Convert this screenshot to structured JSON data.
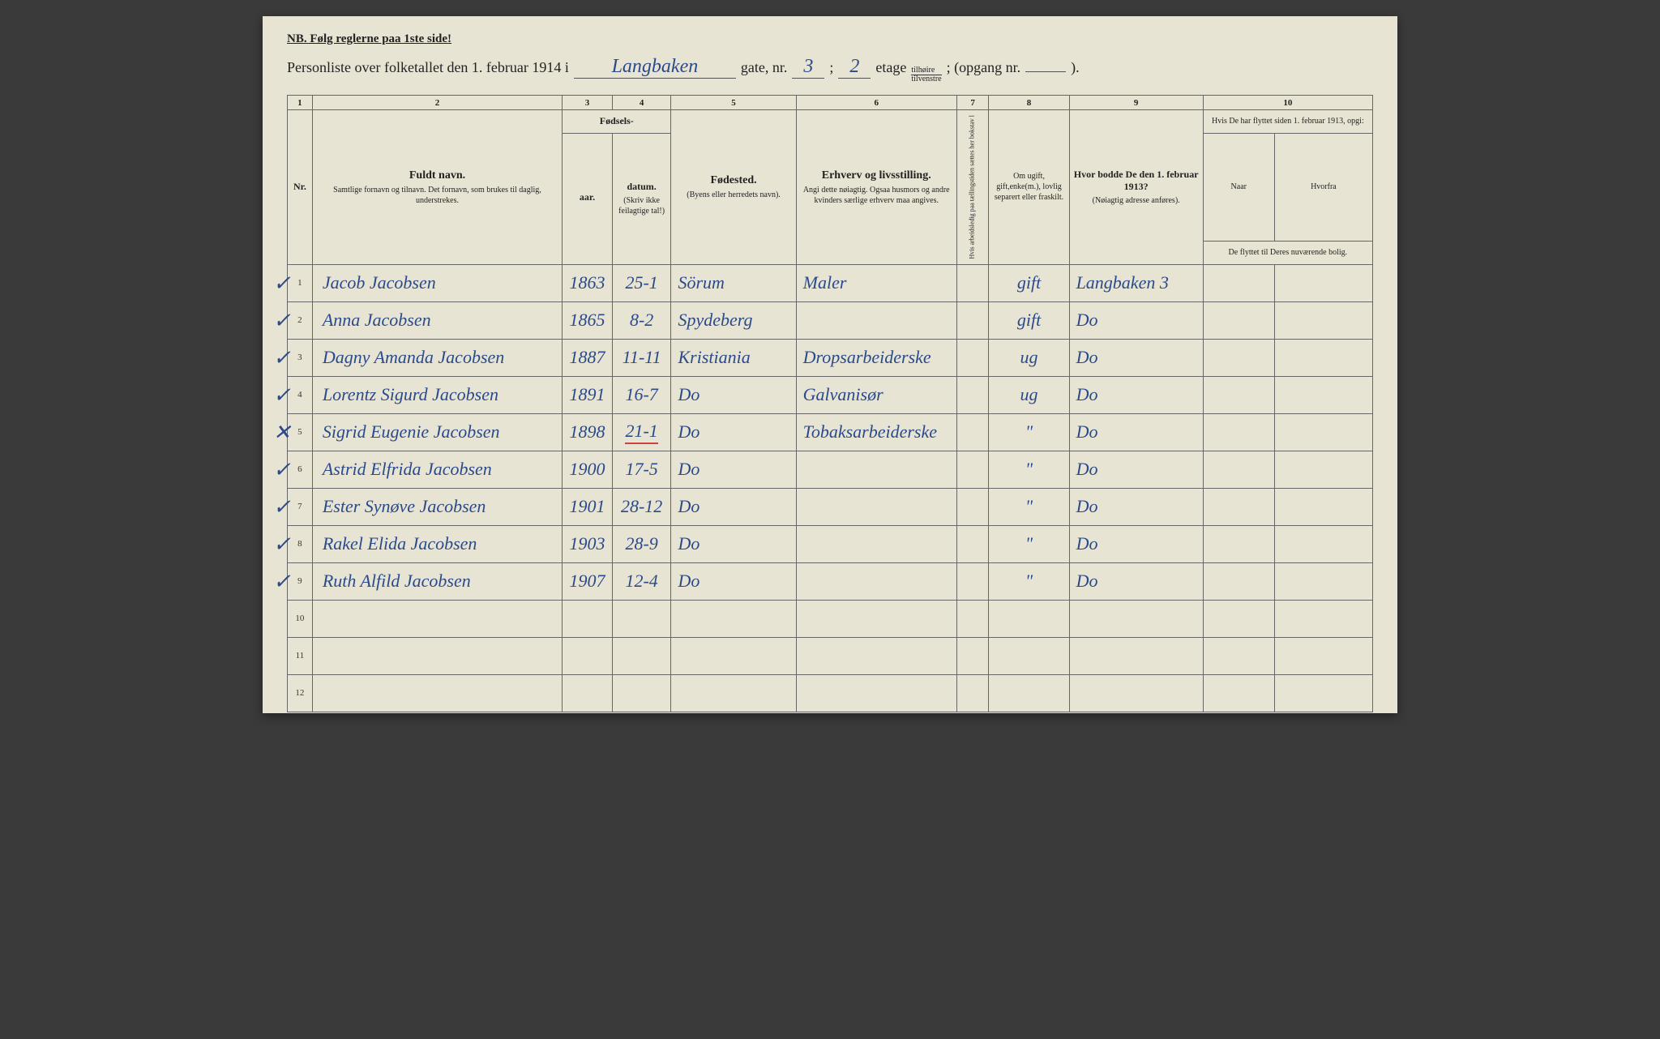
{
  "colors": {
    "page_bg": "#e8e4d4",
    "ink_print": "#222222",
    "ink_hand": "#2a4a8a",
    "rule": "#666666",
    "red_mark": "#d04040"
  },
  "nb": "NB.   Følg reglerne paa 1ste side!",
  "title": {
    "prefix": "Personliste over folketallet den 1. februar 1914 i",
    "street": "Langbaken",
    "gate_label": "gate, nr.",
    "gate_nr": "3",
    "sep": ";",
    "etage_nr": "2",
    "etage_label": "etage",
    "side_top": "tilhøire",
    "side_bottom": "tilvenstre",
    "opgang": "; (opgang nr.",
    "opgang_nr": "",
    "close": ")."
  },
  "col_numbers": [
    "1",
    "2",
    "3",
    "4",
    "5",
    "6",
    "7",
    "8",
    "9",
    "10"
  ],
  "headers": {
    "nr": "Nr.",
    "name_main": "Fuldt navn.",
    "name_sub": "Samtlige fornavn og tilnavn. Det fornavn, som brukes til daglig, understrekes.",
    "fodsels": "Fødsels-",
    "aar": "aar.",
    "datum": "datum.",
    "aar_sub": "(Skriv ikke feilagtige tal!)",
    "fodested": "Fødested.",
    "fodested_sub": "(Byens eller herredets navn).",
    "erhverv": "Erhverv og livsstilling.",
    "erhverv_sub": "Angi dette nøiagtig. Ogsaa husmors og andre kvinders særlige erhverv maa angives.",
    "c7": "Hvis arbeidsledig paa tællingstiden sættes her bokstav l",
    "c8_main": "Om ugift, gift,enke(m.), lovlig separert eller fraskilt.",
    "c9_main": "Hvor bodde De den 1. februar 1913?",
    "c9_sub": "(Nøiagtig adresse anføres).",
    "c10_top": "Hvis De har flyttet siden 1. februar 1913, opgi:",
    "c10_naar": "Naar",
    "c10_hvorfra": "Hvorfra",
    "c10_sub": "De flyttet til Deres nuværende bolig."
  },
  "rows": [
    {
      "check": "✓",
      "nr": "1",
      "name": "Jacob Jacobsen",
      "aar": "1863",
      "datum": "25-1",
      "place": "Sörum",
      "occ": "Maler",
      "c7": "",
      "marital": "gift",
      "addr": "Langbaken 3",
      "naar": "",
      "hvorfra": ""
    },
    {
      "check": "✓",
      "nr": "2",
      "name": "Anna Jacobsen",
      "aar": "1865",
      "datum": "8-2",
      "place": "Spydeberg",
      "occ": "",
      "c7": "",
      "marital": "gift",
      "addr": "Do",
      "naar": "",
      "hvorfra": ""
    },
    {
      "check": "✓",
      "nr": "3",
      "name": "Dagny Amanda Jacobsen",
      "aar": "1887",
      "datum": "11-11",
      "place": "Kristiania",
      "occ": "Dropsarbeiderske",
      "c7": "",
      "marital": "ug",
      "addr": "Do",
      "naar": "",
      "hvorfra": ""
    },
    {
      "check": "✓",
      "nr": "4",
      "name": "Lorentz Sigurd Jacobsen",
      "aar": "1891",
      "datum": "16-7",
      "place": "Do",
      "occ": "Galvanisør",
      "c7": "",
      "marital": "ug",
      "addr": "Do",
      "naar": "",
      "hvorfra": ""
    },
    {
      "check": "✕",
      "nr": "5",
      "name": "Sigrid Eugenie Jacobsen",
      "aar": "1898",
      "datum": "21-1",
      "place": "Do",
      "occ": "Tobaksarbeiderske",
      "c7": "",
      "marital": "\"",
      "addr": "Do",
      "naar": "",
      "hvorfra": "",
      "red": true
    },
    {
      "check": "✓",
      "nr": "6",
      "name": "Astrid Elfrida Jacobsen",
      "aar": "1900",
      "datum": "17-5",
      "place": "Do",
      "occ": "",
      "c7": "",
      "marital": "\"",
      "addr": "Do",
      "naar": "",
      "hvorfra": ""
    },
    {
      "check": "✓",
      "nr": "7",
      "name": "Ester Synøve Jacobsen",
      "aar": "1901",
      "datum": "28-12",
      "place": "Do",
      "occ": "",
      "c7": "",
      "marital": "\"",
      "addr": "Do",
      "naar": "",
      "hvorfra": ""
    },
    {
      "check": "✓",
      "nr": "8",
      "name": "Rakel Elida Jacobsen",
      "aar": "1903",
      "datum": "28-9",
      "place": "Do",
      "occ": "",
      "c7": "",
      "marital": "\"",
      "addr": "Do",
      "naar": "",
      "hvorfra": ""
    },
    {
      "check": "✓",
      "nr": "9",
      "name": "Ruth Alfild Jacobsen",
      "aar": "1907",
      "datum": "12-4",
      "place": "Do",
      "occ": "",
      "c7": "",
      "marital": "\"",
      "addr": "Do",
      "naar": "",
      "hvorfra": ""
    }
  ],
  "empty_rows": [
    "10",
    "11",
    "12"
  ]
}
